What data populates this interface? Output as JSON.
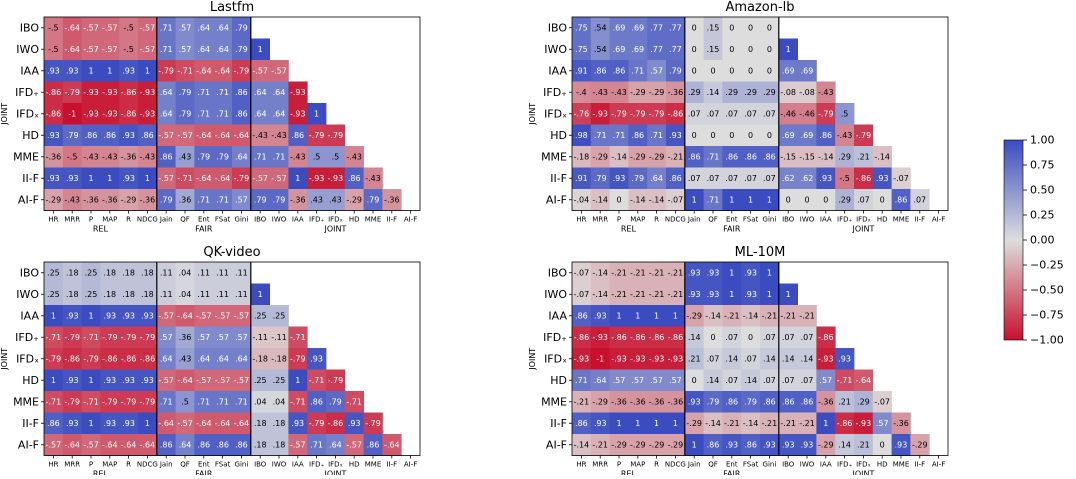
{
  "chart_data": [
    {
      "type": "heatmap",
      "title": "Lastfm",
      "rows": [
        "IBO",
        "IWO",
        "IAA",
        "IFD₊",
        "IFDₓ",
        "HD",
        "MME",
        "II-F",
        "AI-F"
      ],
      "row_group_label": "JOINT",
      "columns": [
        "HR",
        "MRR",
        "P",
        "MAP",
        "R",
        "NDCG",
        "Jain",
        "QF",
        "Ent",
        "FSat",
        "Gini",
        "IBO",
        "IWO",
        "IAA",
        "IFD₊",
        "IFDₓ",
        "HD",
        "MME",
        "II-F",
        "AI-F"
      ],
      "column_groups": [
        "REL",
        "FAIR",
        "JOINT"
      ],
      "values": [
        [
          -0.5,
          -0.64,
          -0.57,
          -0.57,
          -0.5,
          -0.57,
          0.71,
          0.57,
          0.64,
          0.64,
          0.79,
          null,
          null,
          null,
          null,
          null,
          null,
          null,
          null,
          null
        ],
        [
          -0.5,
          -0.64,
          -0.57,
          -0.57,
          -0.5,
          -0.57,
          0.71,
          0.57,
          0.64,
          0.64,
          0.79,
          1,
          null,
          null,
          null,
          null,
          null,
          null,
          null,
          null
        ],
        [
          0.93,
          0.93,
          1,
          1,
          0.93,
          1,
          -0.79,
          -0.71,
          -0.64,
          -0.64,
          -0.79,
          -0.57,
          -0.57,
          null,
          null,
          null,
          null,
          null,
          null,
          null
        ],
        [
          -0.86,
          -0.79,
          -0.93,
          -0.93,
          -0.86,
          -0.93,
          0.64,
          0.79,
          0.71,
          0.71,
          0.86,
          0.64,
          0.64,
          -0.93,
          null,
          null,
          null,
          null,
          null,
          null
        ],
        [
          -0.86,
          -1,
          -0.93,
          -0.93,
          -0.86,
          -0.93,
          0.64,
          0.79,
          0.71,
          0.71,
          0.86,
          0.64,
          0.64,
          -0.93,
          1,
          null,
          null,
          null,
          null,
          null
        ],
        [
          0.93,
          0.79,
          0.86,
          0.86,
          0.93,
          0.86,
          -0.57,
          -0.57,
          -0.64,
          -0.64,
          -0.64,
          -0.43,
          -0.43,
          0.86,
          -0.79,
          -0.79,
          null,
          null,
          null,
          null
        ],
        [
          -0.36,
          -0.5,
          -0.43,
          -0.43,
          -0.36,
          -0.43,
          0.86,
          0.43,
          0.79,
          0.79,
          0.64,
          0.71,
          0.71,
          -0.43,
          0.5,
          0.5,
          -0.43,
          null,
          null,
          null
        ],
        [
          0.93,
          0.93,
          1,
          1,
          0.93,
          1,
          -0.57,
          -0.71,
          -0.64,
          -0.64,
          -0.79,
          -0.57,
          -0.57,
          1,
          -0.93,
          -0.93,
          0.86,
          -0.43,
          null,
          null
        ],
        [
          -0.29,
          -0.43,
          -0.36,
          -0.36,
          -0.29,
          -0.36,
          0.79,
          0.36,
          0.71,
          0.71,
          0.57,
          0.79,
          0.79,
          -0.36,
          0.43,
          0.43,
          -0.29,
          0.79,
          -0.36,
          null
        ]
      ]
    },
    {
      "type": "heatmap",
      "title": "Amazon-lb",
      "rows": [
        "IBO",
        "IWO",
        "IAA",
        "IFD₊",
        "IFDₓ",
        "HD",
        "MME",
        "II-F",
        "AI-F"
      ],
      "row_group_label": "JOINT",
      "columns": [
        "HR",
        "MRR",
        "P",
        "MAP",
        "R",
        "NDCG",
        "Jain",
        "QF",
        "Ent",
        "FSat",
        "Gini",
        "IBO",
        "IWO",
        "IAA",
        "IFD₊",
        "IFDₓ",
        "HD",
        "MME",
        "II-F",
        "AI-F"
      ],
      "column_groups": [
        "REL",
        "FAIR",
        "JOINT"
      ],
      "values": [
        [
          0.75,
          0.54,
          0.69,
          0.69,
          0.77,
          0.77,
          0,
          0.15,
          0,
          0,
          0,
          null,
          null,
          null,
          null,
          null,
          null,
          null,
          null,
          null
        ],
        [
          0.75,
          0.54,
          0.69,
          0.69,
          0.77,
          0.77,
          0,
          0.15,
          0,
          0,
          0,
          1,
          null,
          null,
          null,
          null,
          null,
          null,
          null,
          null
        ],
        [
          0.91,
          0.86,
          0.86,
          0.71,
          0.57,
          0.79,
          0,
          0,
          0,
          0,
          0,
          0.69,
          0.69,
          null,
          null,
          null,
          null,
          null,
          null,
          null
        ],
        [
          -0.4,
          -0.43,
          -0.43,
          -0.29,
          -0.29,
          -0.36,
          0.29,
          0.14,
          0.29,
          0.29,
          0.29,
          -0.08,
          -0.08,
          -0.43,
          null,
          null,
          null,
          null,
          null,
          null
        ],
        [
          -0.76,
          -0.93,
          -0.79,
          -0.79,
          -0.79,
          -0.86,
          0.07,
          0.07,
          0.07,
          0.07,
          0.07,
          -0.46,
          -0.46,
          -0.79,
          0.5,
          null,
          null,
          null,
          null,
          null
        ],
        [
          0.98,
          0.71,
          0.71,
          0.86,
          0.71,
          0.93,
          0,
          0,
          0,
          0,
          0,
          0.69,
          0.69,
          0.86,
          -0.43,
          -0.79,
          null,
          null,
          null,
          null
        ],
        [
          -0.18,
          -0.29,
          -0.14,
          -0.29,
          -0.29,
          -0.21,
          0.86,
          0.71,
          0.86,
          0.86,
          0.86,
          -0.15,
          -0.15,
          -0.14,
          0.29,
          0.21,
          -0.14,
          null,
          null,
          null
        ],
        [
          0.91,
          0.79,
          0.93,
          0.79,
          0.64,
          0.86,
          0.07,
          0.07,
          0.07,
          0.07,
          0.07,
          0.62,
          0.62,
          0.93,
          -0.5,
          -0.86,
          0.93,
          -0.07,
          null,
          null
        ],
        [
          -0.04,
          -0.14,
          0,
          -0.14,
          -0.14,
          -0.07,
          1,
          0.71,
          1,
          1,
          1,
          0,
          0,
          0,
          0.29,
          0.07,
          0,
          0.86,
          0.07,
          null
        ]
      ]
    },
    {
      "type": "heatmap",
      "title": "QK-video",
      "rows": [
        "IBO",
        "IWO",
        "IAA",
        "IFD₊",
        "IFDₓ",
        "HD",
        "MME",
        "II-F",
        "AI-F"
      ],
      "row_group_label": "JOINT",
      "columns": [
        "HR",
        "MRR",
        "P",
        "MAP",
        "R",
        "NDCG",
        "Jain",
        "QF",
        "Ent",
        "FSat",
        "Gini",
        "IBO",
        "IWO",
        "IAA",
        "IFD₊",
        "IFDₓ",
        "HD",
        "MME",
        "II-F",
        "AI-F"
      ],
      "column_groups": [
        "REL",
        "FAIR",
        "JOINT"
      ],
      "values": [
        [
          0.25,
          0.18,
          0.25,
          0.18,
          0.18,
          0.18,
          0.11,
          0.04,
          0.11,
          0.11,
          0.11,
          null,
          null,
          null,
          null,
          null,
          null,
          null,
          null,
          null
        ],
        [
          0.25,
          0.18,
          0.25,
          0.18,
          0.18,
          0.18,
          0.11,
          0.04,
          0.11,
          0.11,
          0.11,
          1,
          null,
          null,
          null,
          null,
          null,
          null,
          null,
          null
        ],
        [
          1,
          0.93,
          1,
          0.93,
          0.93,
          0.93,
          -0.57,
          -0.64,
          -0.57,
          -0.57,
          -0.57,
          0.25,
          0.25,
          null,
          null,
          null,
          null,
          null,
          null,
          null
        ],
        [
          -0.71,
          -0.79,
          -0.71,
          -0.79,
          -0.79,
          -0.79,
          0.57,
          0.36,
          0.57,
          0.57,
          0.57,
          -0.11,
          -0.11,
          -0.71,
          null,
          null,
          null,
          null,
          null,
          null
        ],
        [
          -0.79,
          -0.86,
          -0.79,
          -0.86,
          -0.86,
          -0.86,
          0.64,
          0.43,
          0.64,
          0.64,
          0.64,
          -0.18,
          -0.18,
          -0.79,
          0.93,
          null,
          null,
          null,
          null,
          null
        ],
        [
          1,
          0.93,
          1,
          0.93,
          0.93,
          0.93,
          -0.57,
          -0.64,
          -0.57,
          -0.57,
          -0.57,
          0.25,
          0.25,
          1,
          -0.71,
          -0.79,
          null,
          null,
          null,
          null
        ],
        [
          -0.71,
          -0.79,
          -0.71,
          -0.79,
          -0.79,
          -0.79,
          0.71,
          0.5,
          0.71,
          0.71,
          0.71,
          0.04,
          0.04,
          -0.71,
          0.86,
          0.79,
          -0.71,
          null,
          null,
          null
        ],
        [
          0.86,
          0.93,
          1,
          0.93,
          0.93,
          1,
          -0.64,
          -0.57,
          -0.64,
          -0.64,
          -0.64,
          0.18,
          0.18,
          0.93,
          -0.79,
          -0.86,
          0.93,
          -0.79,
          null,
          null
        ],
        [
          -0.57,
          -0.64,
          -0.57,
          -0.64,
          -0.64,
          -0.64,
          0.86,
          0.64,
          0.86,
          0.86,
          0.86,
          0.18,
          0.18,
          -0.57,
          0.71,
          0.64,
          -0.57,
          0.86,
          -0.64,
          null
        ]
      ]
    },
    {
      "type": "heatmap",
      "title": "ML-10M",
      "rows": [
        "IBO",
        "IWO",
        "IAA",
        "IFD₊",
        "IFDₓ",
        "HD",
        "MME",
        "II-F",
        "AI-F"
      ],
      "row_group_label": "JOINT",
      "columns": [
        "HR",
        "MRR",
        "P",
        "MAP",
        "R",
        "NDCG",
        "Jain",
        "QF",
        "Ent",
        "FSat",
        "Gini",
        "IBO",
        "IWO",
        "IAA",
        "IFD₊",
        "IFDₓ",
        "HD",
        "MME",
        "II-F",
        "AI-F"
      ],
      "column_groups": [
        "REL",
        "FAIR",
        "JOINT"
      ],
      "values": [
        [
          -0.07,
          -0.14,
          -0.21,
          -0.21,
          -0.21,
          -0.21,
          0.93,
          0.93,
          1,
          0.93,
          1,
          null,
          null,
          null,
          null,
          null,
          null,
          null,
          null,
          null
        ],
        [
          -0.07,
          -0.14,
          -0.21,
          -0.21,
          -0.21,
          -0.21,
          0.93,
          0.93,
          1,
          0.93,
          1,
          1,
          null,
          null,
          null,
          null,
          null,
          null,
          null,
          null
        ],
        [
          0.86,
          0.93,
          1,
          1,
          1,
          1,
          -0.29,
          -0.14,
          -0.21,
          -0.14,
          -0.21,
          -0.21,
          -0.21,
          null,
          null,
          null,
          null,
          null,
          null,
          null
        ],
        [
          -0.86,
          -0.93,
          -0.86,
          -0.86,
          -0.86,
          -0.86,
          0.14,
          0,
          0.07,
          0,
          0.07,
          0.07,
          0.07,
          -0.86,
          null,
          null,
          null,
          null,
          null,
          null
        ],
        [
          -0.93,
          -1,
          -0.93,
          -0.93,
          -0.93,
          -0.93,
          0.21,
          0.07,
          0.14,
          0.07,
          0.14,
          0.14,
          0.14,
          -0.93,
          0.93,
          null,
          null,
          null,
          null,
          null
        ],
        [
          0.71,
          0.64,
          0.57,
          0.57,
          0.57,
          0.57,
          0,
          0.14,
          0.07,
          0.14,
          0.07,
          0.07,
          0.07,
          0.57,
          -0.71,
          -0.64,
          null,
          null,
          null,
          null
        ],
        [
          -0.21,
          -0.29,
          -0.36,
          -0.36,
          -0.36,
          -0.36,
          0.93,
          0.79,
          0.86,
          0.79,
          0.86,
          0.86,
          0.86,
          -0.36,
          0.21,
          0.29,
          -0.07,
          null,
          null,
          null
        ],
        [
          0.86,
          0.93,
          1,
          1,
          1,
          1,
          -0.29,
          -0.14,
          -0.21,
          -0.14,
          -0.21,
          -0.21,
          -0.21,
          1,
          -0.86,
          -0.93,
          0.57,
          -0.36,
          null,
          null
        ],
        [
          -0.14,
          -0.21,
          -0.29,
          -0.29,
          -0.29,
          -0.29,
          1,
          0.86,
          0.93,
          0.86,
          0.93,
          0.93,
          0.93,
          -0.29,
          0.14,
          0.21,
          0,
          0.93,
          -0.29,
          null
        ]
      ]
    }
  ],
  "colorbar": {
    "ticks": [
      "1.00",
      "0.75",
      "0.50",
      "0.25",
      "0.00",
      "−0.25",
      "−0.50",
      "−0.75",
      "−1.00"
    ],
    "tick_values": [
      1,
      0.75,
      0.5,
      0.25,
      0,
      -0.25,
      -0.5,
      -0.75,
      -1
    ],
    "range": [
      -1,
      1
    ],
    "colormap": "coolwarm_r",
    "low_color": "#c8102e",
    "mid_color": "#dddddd",
    "high_color": "#3a4cc0"
  }
}
